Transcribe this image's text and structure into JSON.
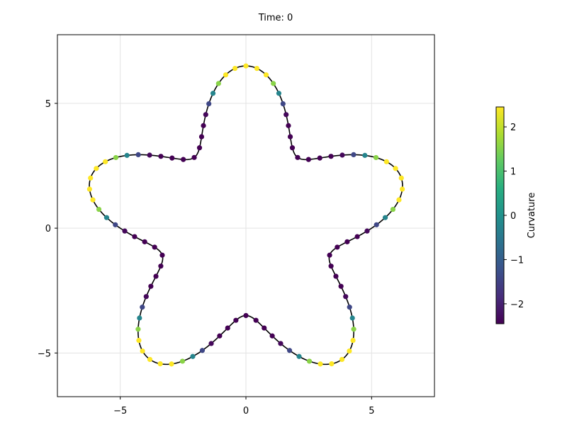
{
  "chart_data": {
    "type": "scatter",
    "title": "Time: 0",
    "xlabel": "",
    "ylabel": "",
    "xlim": [
      -7.5,
      7.5
    ],
    "ylim": [
      -6.75,
      7.75
    ],
    "xticks": [
      -5,
      0,
      5
    ],
    "yticks": [
      -5,
      0,
      5
    ],
    "xtick_labels": [
      "−5",
      "0",
      "5"
    ],
    "ytick_labels": [
      "−5",
      "0",
      "5"
    ],
    "grid": true,
    "colorbar": {
      "label": "Curvature",
      "range": [
        -2.45,
        2.45
      ],
      "ticks": [
        -2,
        -1,
        0,
        1,
        2
      ],
      "tick_labels": [
        "−2",
        "−1",
        "0",
        "1",
        "2"
      ],
      "colormap": "viridis"
    },
    "curve": {
      "shape": "five-armed star (polar curve r = 5 + 1.5·cos(5θ))",
      "color": "#000000",
      "curvature_range": [
        -2.45,
        1.3
      ]
    },
    "point_count": 100
  },
  "colors": {
    "viridis_stops": [
      "#440154",
      "#472d7b",
      "#3b528b",
      "#2c728e",
      "#21918c",
      "#28ae80",
      "#5ec962",
      "#addc30",
      "#fde725"
    ]
  }
}
